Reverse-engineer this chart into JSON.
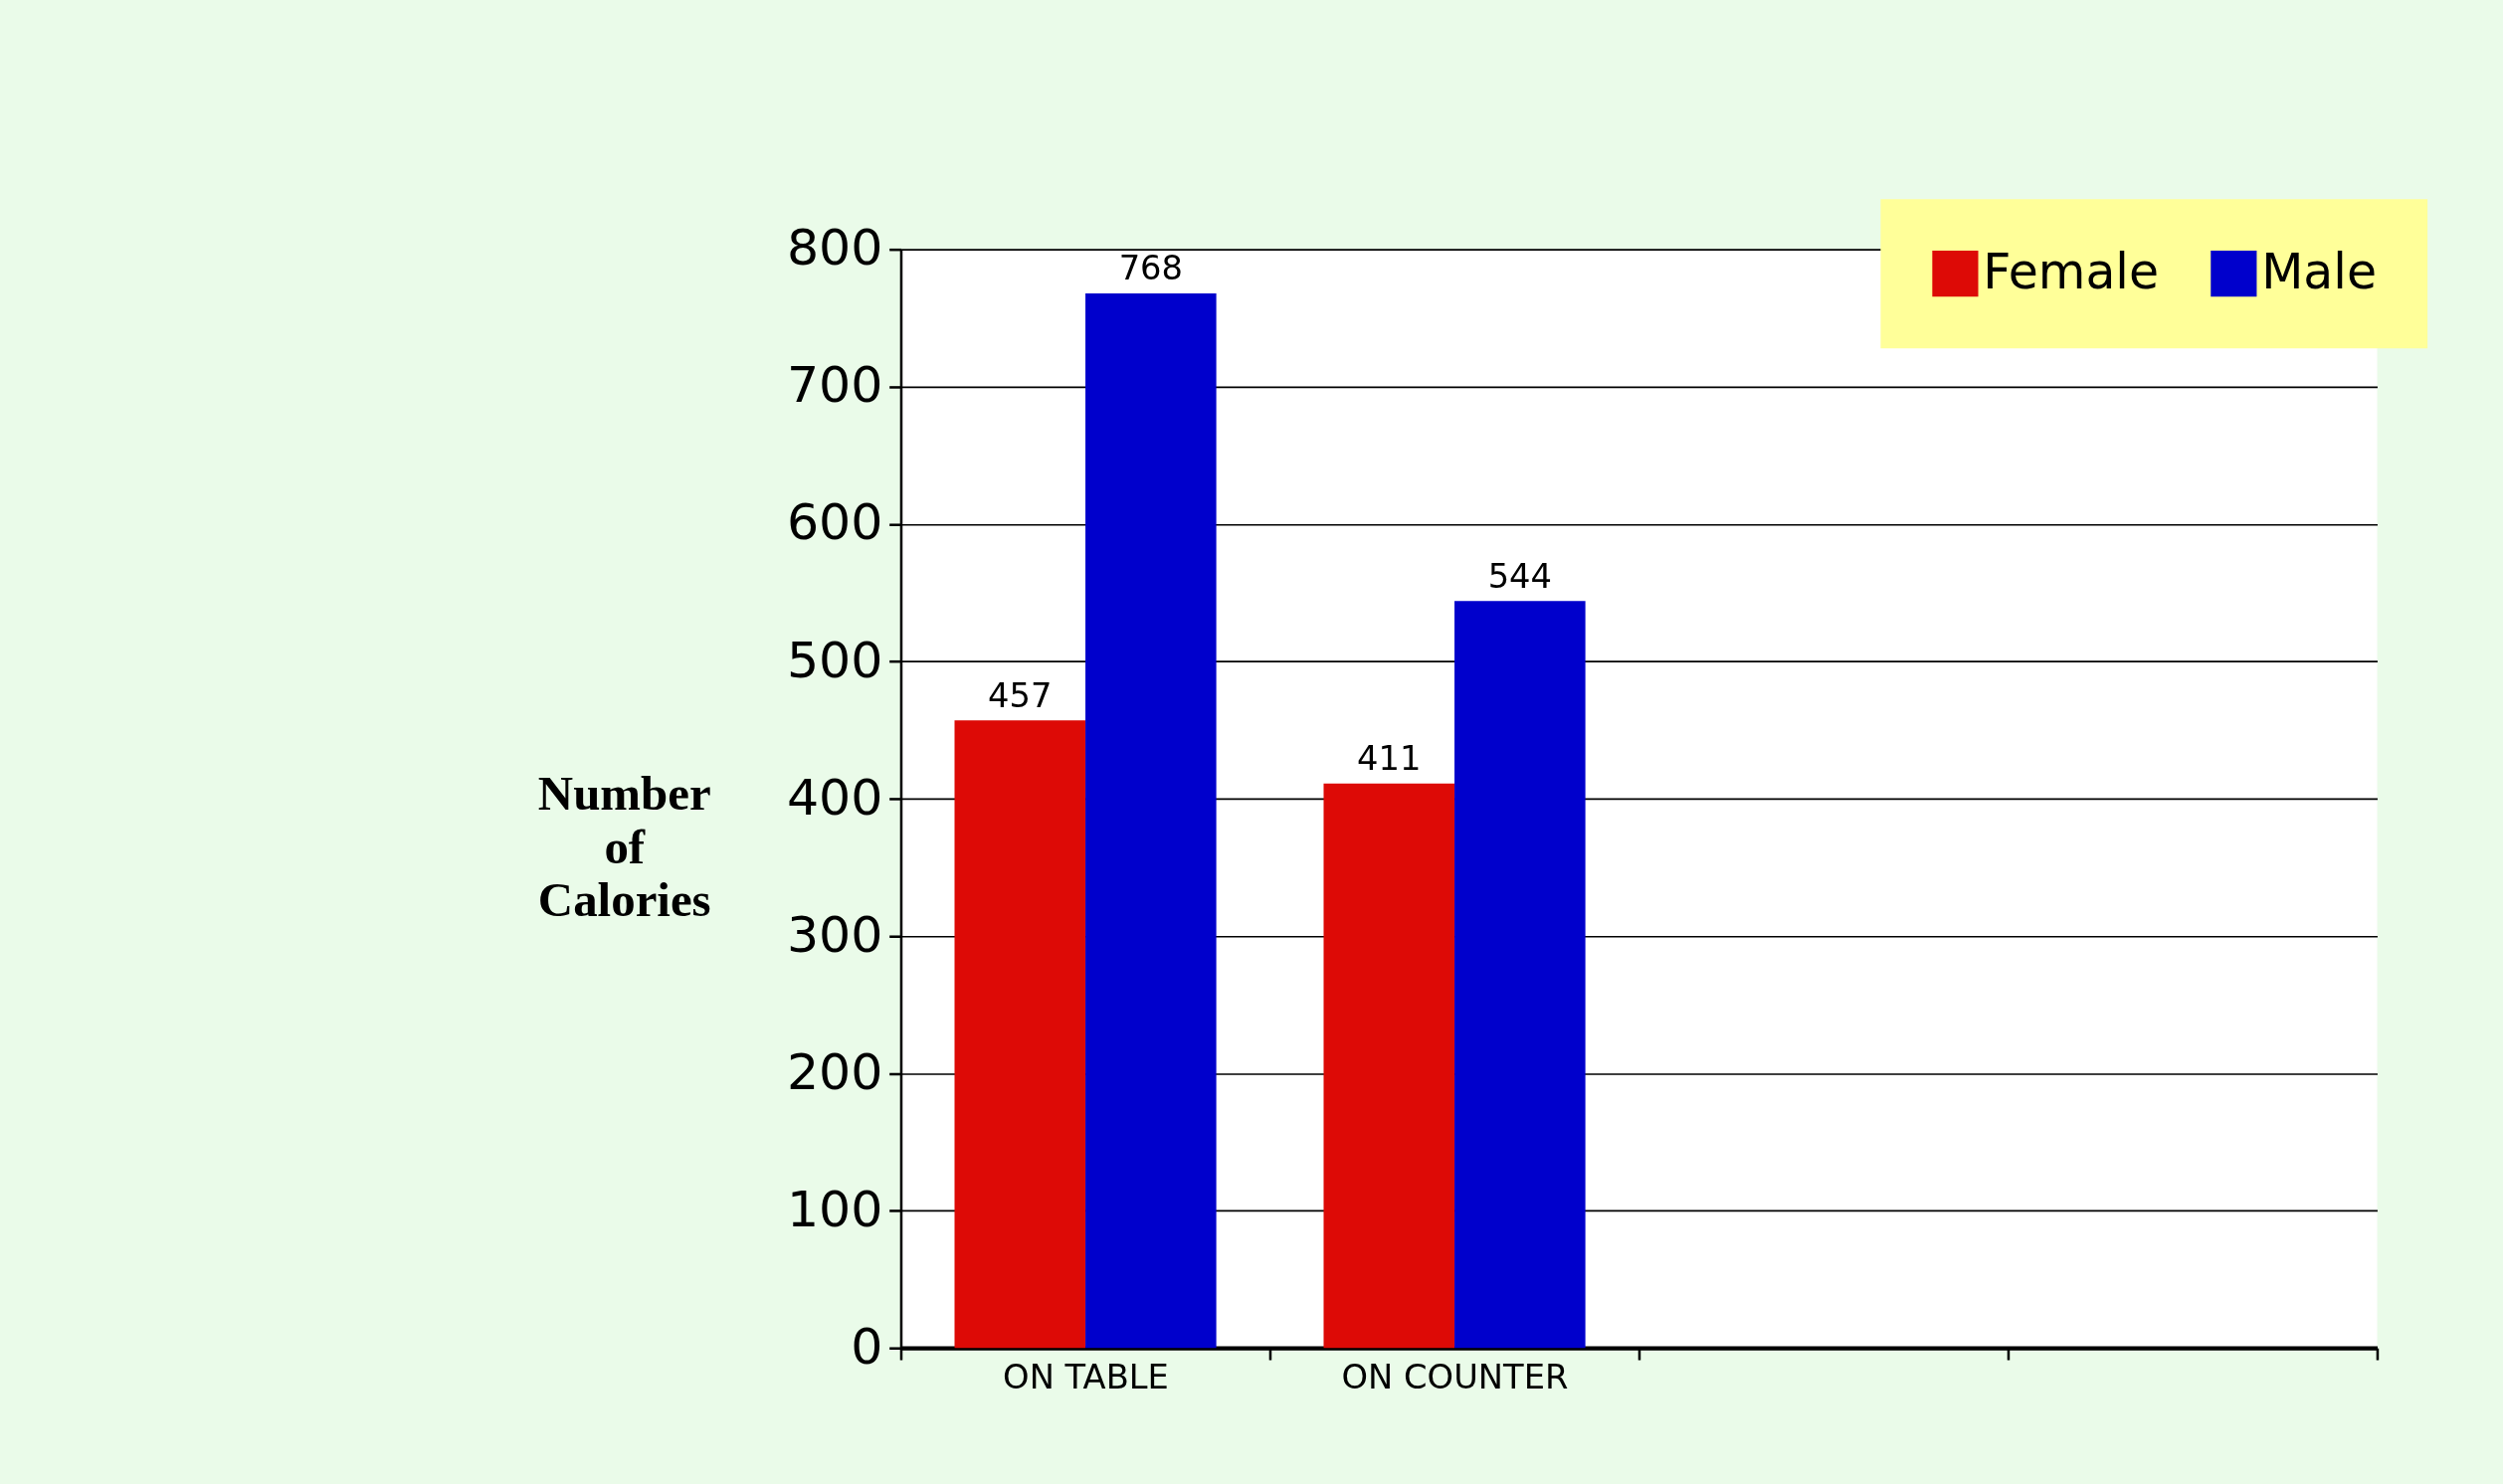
{
  "chart_data": {
    "type": "bar",
    "ylabel": "Number of Calories",
    "categories": [
      "ON TABLE",
      "ON COUNTER",
      null,
      null
    ],
    "series": [
      {
        "name": "Female",
        "color": "#dd0a06",
        "values": [
          457,
          411,
          null,
          null
        ]
      },
      {
        "name": "Male",
        "color": "#0000cc",
        "values": [
          768,
          544,
          null,
          null
        ]
      }
    ],
    "ylim": [
      0,
      800
    ],
    "yticks": [
      0,
      100,
      200,
      300,
      400,
      500,
      600,
      700,
      800
    ],
    "grid": "y",
    "legend": "top right",
    "data_labels": true
  }
}
